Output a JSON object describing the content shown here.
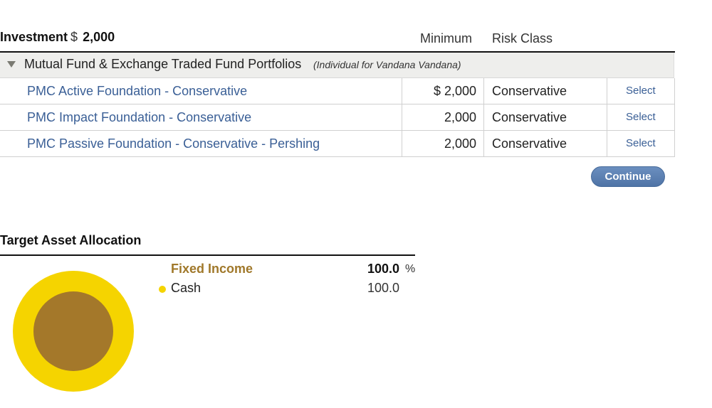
{
  "investment": {
    "label": "Investment",
    "currency": "$",
    "amount": "2,000"
  },
  "columns": {
    "minimum": "Minimum",
    "risk_class": "Risk Class"
  },
  "group": {
    "title": "Mutual Fund & Exchange Traded Fund Portfolios",
    "note": "(Individual for Vandana Vandana)"
  },
  "funds": [
    {
      "name": "PMC Active Foundation - Conservative",
      "minimum": "$ 2,000",
      "risk": "Conservative",
      "action": "Select"
    },
    {
      "name": "PMC Impact Foundation - Conservative",
      "minimum": "2,000",
      "risk": "Conservative",
      "action": "Select"
    },
    {
      "name": "PMC Passive Foundation - Conservative - Pershing",
      "minimum": "2,000",
      "risk": "Conservative",
      "action": "Select"
    }
  ],
  "continue_label": "Continue",
  "allocation": {
    "title": "Target Asset Allocation",
    "category": "Fixed Income",
    "category_value": "100.0",
    "percent_sign": "%",
    "items": [
      {
        "label": "Cash",
        "value": "100.0",
        "color": "#f5d400"
      }
    ],
    "inner_color": "#a4782a"
  }
}
